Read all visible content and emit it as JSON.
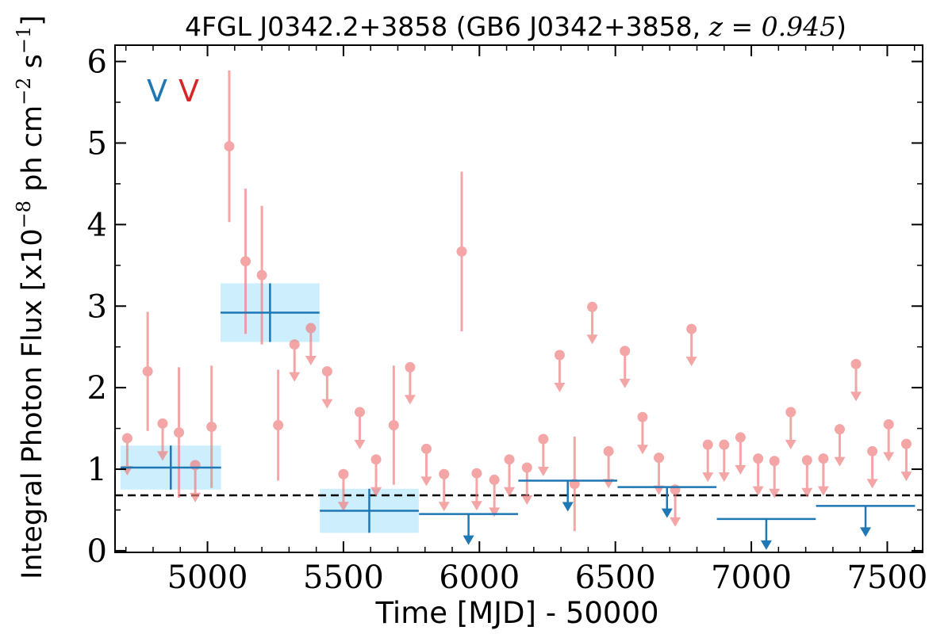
{
  "chart_data": {
    "type": "scatter",
    "title_main": "4FGL J0342.2+3858 (GB6 J0342+3858, ",
    "title_z": "z = 0.945",
    "title_close": ")",
    "xlabel": "Time [MJD] - 50000",
    "ylabel_pre": "Integral Photon Flux [x10",
    "ylabel_exp1": "−8",
    "ylabel_mid": " ph cm",
    "ylabel_exp2": "−2",
    "ylabel_s": " s",
    "ylabel_exp3": "−1",
    "ylabel_post": "]",
    "xlim": [
      4660,
      7630
    ],
    "ylim": [
      -0.02,
      6.2
    ],
    "xticks": [
      5000,
      5500,
      6000,
      6500,
      7000,
      7500
    ],
    "yticks": [
      0,
      1,
      2,
      3,
      4,
      5,
      6
    ],
    "legend_labels": [
      "V",
      "V"
    ],
    "legend_colors": [
      "#1f77b4",
      "#d62728"
    ],
    "reference_line_y": 0.68,
    "bins_detected": [
      {
        "x": 4865,
        "x_half": 185,
        "y": 1.02,
        "y_err": 0.27
      },
      {
        "x": 5230,
        "x_half": 182,
        "y": 2.92,
        "y_err": 0.36
      },
      {
        "x": 5595,
        "x_half": 182,
        "y": 0.49,
        "y_err": 0.27
      }
    ],
    "bins_upper_limits": [
      {
        "x": 5960,
        "x_half": 182,
        "y": 0.45
      },
      {
        "x": 6325,
        "x_half": 182,
        "y": 0.86
      },
      {
        "x": 6690,
        "x_half": 182,
        "y": 0.78
      },
      {
        "x": 7055,
        "x_half": 182,
        "y": 0.39
      },
      {
        "x": 7420,
        "x_half": 182,
        "y": 0.55
      }
    ],
    "points_detected": [
      {
        "x": 4780,
        "y": 2.2,
        "y_err": 0.73
      },
      {
        "x": 4895,
        "y": 1.45,
        "y_err": 0.8
      },
      {
        "x": 5015,
        "y": 1.52,
        "y_err": 0.75
      },
      {
        "x": 5080,
        "y": 4.96,
        "y_err": 0.93
      },
      {
        "x": 5140,
        "y": 3.55,
        "y_err": 0.89
      },
      {
        "x": 5200,
        "y": 3.38,
        "y_err": 0.85
      },
      {
        "x": 5260,
        "y": 1.54,
        "y_err": 0.68
      },
      {
        "x": 5685,
        "y": 1.54,
        "y_err": 0.73
      },
      {
        "x": 5935,
        "y": 3.67,
        "y_err": 0.98
      },
      {
        "x": 6350,
        "y": 0.82,
        "y_err": 0.58
      }
    ],
    "points_upper_limits": [
      {
        "x": 4705,
        "y": 1.38
      },
      {
        "x": 4835,
        "y": 1.56
      },
      {
        "x": 4955,
        "y": 1.05
      },
      {
        "x": 5320,
        "y": 2.53
      },
      {
        "x": 5380,
        "y": 2.73
      },
      {
        "x": 5440,
        "y": 2.2
      },
      {
        "x": 5500,
        "y": 0.94
      },
      {
        "x": 5560,
        "y": 1.7
      },
      {
        "x": 5620,
        "y": 1.12
      },
      {
        "x": 5745,
        "y": 2.25
      },
      {
        "x": 5805,
        "y": 1.25
      },
      {
        "x": 5870,
        "y": 0.94
      },
      {
        "x": 5990,
        "y": 0.95
      },
      {
        "x": 6055,
        "y": 0.87
      },
      {
        "x": 6110,
        "y": 1.12
      },
      {
        "x": 6175,
        "y": 1.02
      },
      {
        "x": 6235,
        "y": 1.37
      },
      {
        "x": 6295,
        "y": 2.4
      },
      {
        "x": 6415,
        "y": 2.99
      },
      {
        "x": 6475,
        "y": 1.22
      },
      {
        "x": 6535,
        "y": 2.45
      },
      {
        "x": 6600,
        "y": 1.64
      },
      {
        "x": 6660,
        "y": 1.14
      },
      {
        "x": 6720,
        "y": 0.75
      },
      {
        "x": 6780,
        "y": 2.72
      },
      {
        "x": 6840,
        "y": 1.3
      },
      {
        "x": 6900,
        "y": 1.3
      },
      {
        "x": 6960,
        "y": 1.39
      },
      {
        "x": 7025,
        "y": 1.13
      },
      {
        "x": 7085,
        "y": 1.1
      },
      {
        "x": 7145,
        "y": 1.7
      },
      {
        "x": 7205,
        "y": 1.11
      },
      {
        "x": 7265,
        "y": 1.13
      },
      {
        "x": 7325,
        "y": 1.49
      },
      {
        "x": 7385,
        "y": 2.29
      },
      {
        "x": 7445,
        "y": 1.22
      },
      {
        "x": 7505,
        "y": 1.55
      },
      {
        "x": 7570,
        "y": 1.31
      }
    ],
    "colors": {
      "binned": "#1f77b4",
      "binned_box": "#cdeefd",
      "points": "#f08080",
      "reference_line": "#000000"
    }
  }
}
